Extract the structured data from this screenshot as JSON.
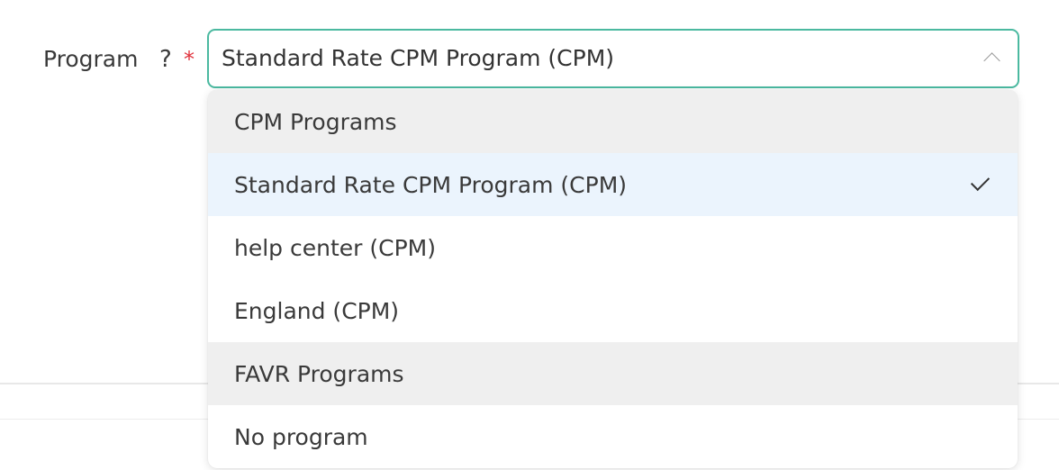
{
  "field": {
    "label": "Program",
    "help": "?",
    "required": "*"
  },
  "select": {
    "value": "Standard Rate CPM Program (CPM)",
    "expanded": true,
    "accent_color": "#4bb9a0"
  },
  "dropdown": {
    "options": [
      {
        "label": "CPM Programs",
        "type": "group"
      },
      {
        "label": "Standard Rate CPM Program (CPM)",
        "type": "option",
        "selected": true
      },
      {
        "label": "help center (CPM)",
        "type": "option"
      },
      {
        "label": "England (CPM)",
        "type": "option"
      },
      {
        "label": "FAVR Programs",
        "type": "group"
      },
      {
        "label": "No program",
        "type": "option"
      }
    ]
  },
  "icons": {
    "chevron": "chevron-up-icon",
    "check": "check-icon"
  }
}
